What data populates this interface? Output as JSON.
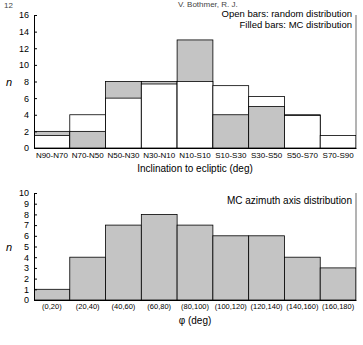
{
  "page": {
    "number": "12",
    "header": "V. Bothmer, R. J."
  },
  "chart_data": [
    {
      "type": "bar",
      "x_label": "Inclination to ecliptic (deg)",
      "y_label": "n",
      "categories": [
        "N90-N70",
        "N70-N50",
        "N50-N30",
        "N30-N10",
        "N10-S10",
        "S10-S30",
        "S30-S50",
        "S50-S70",
        "S70-S90"
      ],
      "series": [
        {
          "name": "Open bars: random distribution",
          "color": "#ffffff",
          "values": [
            1.5,
            4,
            6,
            7.7,
            8,
            7.5,
            6.2,
            3.9,
            1.5
          ]
        },
        {
          "name": "Filled bars: MC distribution",
          "color": "#c4c4c4",
          "values": [
            2,
            2,
            8,
            8,
            13,
            4,
            5,
            4,
            0
          ]
        }
      ],
      "ylim": [
        0,
        16
      ],
      "yticks": [
        0,
        2,
        4,
        6,
        8,
        10,
        12,
        14,
        16
      ],
      "legend": "upper right"
    },
    {
      "type": "bar",
      "title": "MC azimuth axis distribution",
      "x_label": "φ (deg)",
      "y_label": "n",
      "categories": [
        "(0,20)",
        "(20,40)",
        "(40,60)",
        "(60,80)",
        "(80,100)",
        "(100,120)",
        "(120,140)",
        "(140,160)",
        "(160,180)"
      ],
      "values": [
        1,
        4,
        7,
        8,
        7,
        6,
        6,
        4,
        3
      ],
      "color": "#c4c4c4",
      "ylim": [
        0,
        10
      ],
      "yticks": [
        0,
        1,
        2,
        3,
        4,
        5,
        6,
        7,
        8,
        9,
        10
      ]
    }
  ]
}
